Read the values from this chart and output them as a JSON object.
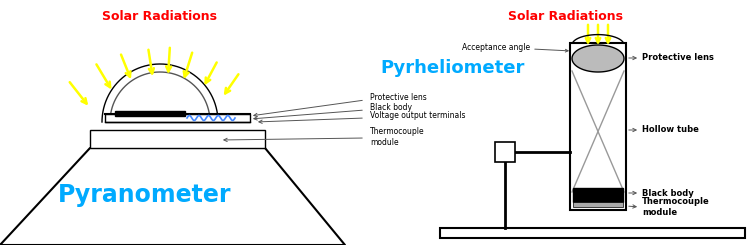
{
  "title_left": "Solar Radiations",
  "title_right": "Solar Radiations",
  "label_pyranometer": "Pyranometer",
  "label_pyrheliometer": "Pyrheliometer",
  "label_protective_lens_left": "Protective lens",
  "label_black_body_left": "Black body",
  "label_voltage_output": "Voltage output terminals",
  "label_thermocouple_left": "Thermocouple\nmodule",
  "label_acceptance_angle": "Acceptance angle",
  "label_protective_lens_right": "Protective lens",
  "label_hollow_tube": "Hollow tube",
  "label_black_body_right": "Black body",
  "label_thermocouple_right": "Thermocouple\nmodule",
  "color_title": "#ff0000",
  "color_pyranometer": "#00aaff",
  "color_pyrheliometer": "#00aaff",
  "color_arrows_yellow": "#ffff00",
  "color_black": "#000000",
  "color_gray": "#999999",
  "color_dark_gray": "#555555",
  "bg_color": "#ffffff"
}
